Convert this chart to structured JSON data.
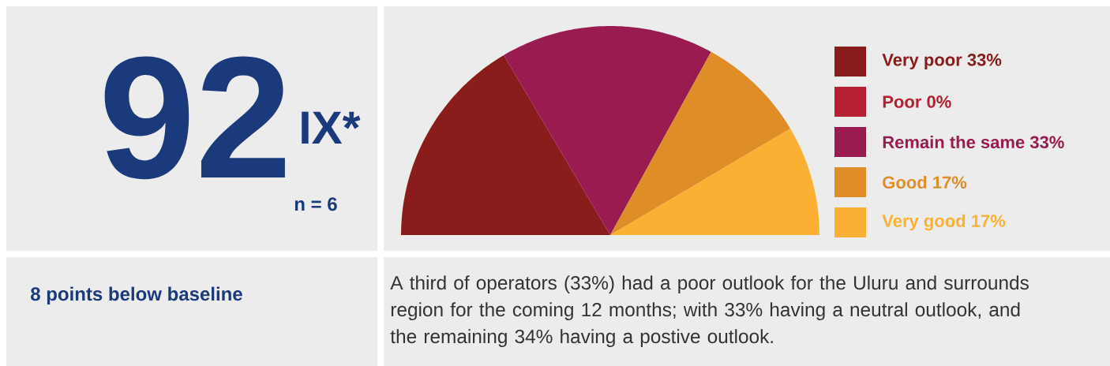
{
  "chart_data": [
    {
      "type": "other",
      "title": "92",
      "subtitle": "IX*",
      "annotations": [
        "n = 6",
        "8 points below baseline"
      ]
    },
    {
      "type": "pie",
      "categories": [
        "Very poor",
        "Poor",
        "Remain the same",
        "Good",
        "Very good"
      ],
      "values": [
        33,
        0,
        33,
        17,
        17
      ],
      "colors": [
        "#8b1c1c",
        "#b71f33",
        "#9a1b50",
        "#df8d26",
        "#fbb034"
      ],
      "value_labels": [
        "33%",
        "0%",
        "33%",
        "17%",
        "17%"
      ],
      "legend": "right",
      "annotations": [
        "A third of operators (33%) had a poor outlook for the Uluru and surrounds region for the coming 12 months; with 33% having a neutral outlook, and the remaining 34% having a postive outlook."
      ]
    }
  ]
}
